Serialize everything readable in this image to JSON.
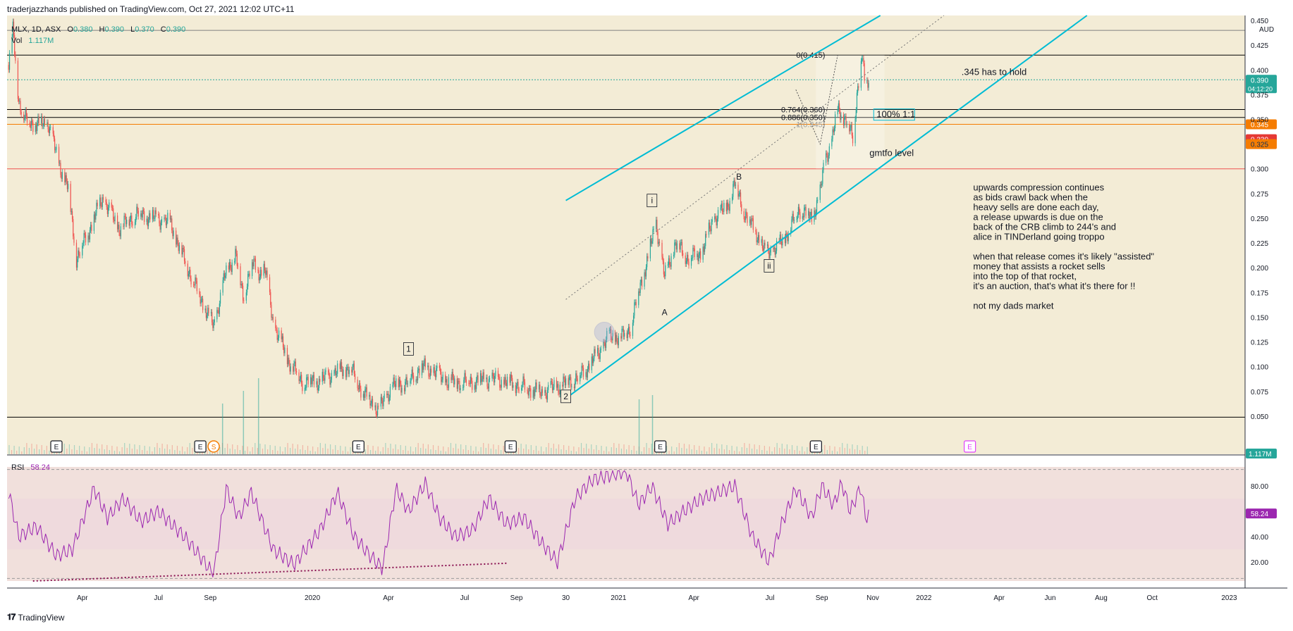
{
  "header": {
    "published": "traderjazzhands published on TradingView.com, Oct 27, 2021 12:02 UTC+11"
  },
  "footer": {
    "brand": "TradingView",
    "logo": "tv-logo-icon"
  },
  "colors": {
    "up": "#26a69a",
    "down": "#ef5350",
    "channel": "#00bcd4",
    "rsi": "#9c27b0",
    "price_panel_bg": "#f3ecd6",
    "rsi_panel_bg": "#f1e0dc",
    "orange": "#f57c00",
    "red": "#e53935"
  },
  "chart_data": {
    "type": "candlestick",
    "symbol": "MLX",
    "interval": "1D",
    "exchange": "ASX",
    "currency": "AUD",
    "legend": {
      "symbol": "MLX, 1D, ASX",
      "o_label": "O",
      "o": "0.380",
      "h_label": "H",
      "h": "0.390",
      "l_label": "L",
      "l": "0.370",
      "c_label": "C",
      "c": "0.390",
      "vol_label": "Vol",
      "vol": "1.117M"
    },
    "ylim": [
      0.035,
      0.455
    ],
    "y_ticks": [
      "0.450",
      "0.425",
      "0.400",
      "0.375",
      "0.350",
      "0.325",
      "0.300",
      "0.275",
      "0.250",
      "0.225",
      "0.200",
      "0.175",
      "0.150",
      "0.125",
      "0.100",
      "0.075",
      "0.050"
    ],
    "x_range": [
      "2019-01-01",
      "2023-01-20"
    ],
    "x_ticks": [
      {
        "date": "2019-04-01",
        "label": "Apr"
      },
      {
        "date": "2019-07-01",
        "label": "Jul"
      },
      {
        "date": "2019-09-01",
        "label": "Sep"
      },
      {
        "date": "2020-01-01",
        "label": "2020"
      },
      {
        "date": "2020-04-01",
        "label": "Apr"
      },
      {
        "date": "2020-07-01",
        "label": "Jul"
      },
      {
        "date": "2020-09-01",
        "label": "Sep"
      },
      {
        "date": "2020-10-30",
        "label": "30"
      },
      {
        "date": "2021-01-01",
        "label": "2021"
      },
      {
        "date": "2021-04-01",
        "label": "Apr"
      },
      {
        "date": "2021-07-01",
        "label": "Jul"
      },
      {
        "date": "2021-09-01",
        "label": "Sep"
      },
      {
        "date": "2021-11-01",
        "label": "Nov"
      },
      {
        "date": "2022-01-01",
        "label": "2022"
      },
      {
        "date": "2022-04-01",
        "label": "Apr"
      },
      {
        "date": "2022-06-01",
        "label": "Jun"
      },
      {
        "date": "2022-08-01",
        "label": "Aug"
      },
      {
        "date": "2022-10-01",
        "label": "Oct"
      },
      {
        "date": "2023-01-01",
        "label": "2023"
      }
    ],
    "price_path": [
      [
        "2019-01-03",
        0.405
      ],
      [
        "2019-01-08",
        0.44
      ],
      [
        "2019-01-15",
        0.37
      ],
      [
        "2019-01-22",
        0.35
      ],
      [
        "2019-02-05",
        0.345
      ],
      [
        "2019-02-20",
        0.345
      ],
      [
        "2019-03-02",
        0.31
      ],
      [
        "2019-03-15",
        0.28
      ],
      [
        "2019-03-25",
        0.21
      ],
      [
        "2019-04-05",
        0.23
      ],
      [
        "2019-04-25",
        0.27
      ],
      [
        "2019-05-15",
        0.24
      ],
      [
        "2019-06-05",
        0.255
      ],
      [
        "2019-06-25",
        0.25
      ],
      [
        "2019-07-15",
        0.245
      ],
      [
        "2019-08-05",
        0.2
      ],
      [
        "2019-08-25",
        0.16
      ],
      [
        "2019-09-05",
        0.14
      ],
      [
        "2019-09-18",
        0.19
      ],
      [
        "2019-10-01",
        0.215
      ],
      [
        "2019-10-10",
        0.17
      ],
      [
        "2019-10-20",
        0.205
      ],
      [
        "2019-10-30",
        0.195
      ],
      [
        "2019-11-05",
        0.2
      ],
      [
        "2019-11-15",
        0.145
      ],
      [
        "2019-12-01",
        0.11
      ],
      [
        "2019-12-20",
        0.085
      ],
      [
        "2020-01-10",
        0.085
      ],
      [
        "2020-01-31",
        0.095
      ],
      [
        "2020-02-15",
        0.1
      ],
      [
        "2020-03-01",
        0.075
      ],
      [
        "2020-03-20",
        0.055
      ],
      [
        "2020-04-05",
        0.08
      ],
      [
        "2020-04-25",
        0.085
      ],
      [
        "2020-05-10",
        0.1
      ],
      [
        "2020-05-25",
        0.095
      ],
      [
        "2020-06-10",
        0.085
      ],
      [
        "2020-07-01",
        0.085
      ],
      [
        "2020-08-01",
        0.087
      ],
      [
        "2020-09-01",
        0.083
      ],
      [
        "2020-10-01",
        0.073
      ],
      [
        "2020-10-25",
        0.082
      ],
      [
        "2020-11-15",
        0.09
      ],
      [
        "2020-12-05",
        0.11
      ],
      [
        "2020-12-20",
        0.13
      ],
      [
        "2021-01-05",
        0.13
      ],
      [
        "2021-01-15",
        0.14
      ],
      [
        "2021-01-25",
        0.175
      ],
      [
        "2021-02-05",
        0.21
      ],
      [
        "2021-02-15",
        0.245
      ],
      [
        "2021-02-25",
        0.19
      ],
      [
        "2021-03-10",
        0.225
      ],
      [
        "2021-03-25",
        0.21
      ],
      [
        "2021-04-10",
        0.215
      ],
      [
        "2021-04-25",
        0.25
      ],
      [
        "2021-05-10",
        0.26
      ],
      [
        "2021-05-20",
        0.285
      ],
      [
        "2021-06-01",
        0.255
      ],
      [
        "2021-06-15",
        0.235
      ],
      [
        "2021-06-25",
        0.215
      ],
      [
        "2021-07-10",
        0.22
      ],
      [
        "2021-07-25",
        0.24
      ],
      [
        "2021-08-05",
        0.26
      ],
      [
        "2021-08-20",
        0.25
      ],
      [
        "2021-08-30",
        0.275
      ],
      [
        "2021-09-05",
        0.31
      ],
      [
        "2021-09-12",
        0.325
      ],
      [
        "2021-09-20",
        0.36
      ],
      [
        "2021-09-30",
        0.35
      ],
      [
        "2021-10-08",
        0.33
      ],
      [
        "2021-10-14",
        0.385
      ],
      [
        "2021-10-19",
        0.415
      ],
      [
        "2021-10-23",
        0.38
      ],
      [
        "2021-10-27",
        0.39
      ]
    ],
    "volume_path": [
      [
        "2019-01-01",
        0.2
      ],
      [
        "2023-01-01",
        0.2
      ]
    ],
    "volume_spikes": [
      [
        "2019-09-15",
        0.6
      ],
      [
        "2019-10-10",
        0.75
      ],
      [
        "2019-10-28",
        0.9
      ],
      [
        "2021-01-25",
        0.65
      ],
      [
        "2021-02-10",
        0.7
      ]
    ],
    "rsi": {
      "label": "RSI",
      "value": "58.24",
      "ylim": [
        5,
        95
      ],
      "y_ticks": [
        "80.00",
        "40.00",
        "20.00"
      ],
      "band": [
        30,
        70
      ],
      "path": [
        [
          "2019-01-03",
          75
        ],
        [
          "2019-01-15",
          40
        ],
        [
          "2019-02-05",
          48
        ],
        [
          "2019-03-01",
          25
        ],
        [
          "2019-03-20",
          30
        ],
        [
          "2019-04-15",
          78
        ],
        [
          "2019-05-01",
          55
        ],
        [
          "2019-05-20",
          70
        ],
        [
          "2019-06-10",
          52
        ],
        [
          "2019-07-01",
          60
        ],
        [
          "2019-08-01",
          40
        ],
        [
          "2019-08-25",
          20
        ],
        [
          "2019-09-05",
          10
        ],
        [
          "2019-09-20",
          78
        ],
        [
          "2019-10-05",
          55
        ],
        [
          "2019-10-20",
          75
        ],
        [
          "2019-11-15",
          30
        ],
        [
          "2019-12-10",
          18
        ],
        [
          "2020-01-10",
          45
        ],
        [
          "2020-01-31",
          75
        ],
        [
          "2020-02-20",
          40
        ],
        [
          "2020-03-10",
          25
        ],
        [
          "2020-03-25",
          15
        ],
        [
          "2020-04-10",
          78
        ],
        [
          "2020-04-25",
          60
        ],
        [
          "2020-05-15",
          82
        ],
        [
          "2020-06-01",
          55
        ],
        [
          "2020-06-20",
          40
        ],
        [
          "2020-07-10",
          45
        ],
        [
          "2020-07-30",
          70
        ],
        [
          "2020-08-20",
          50
        ],
        [
          "2020-09-10",
          55
        ],
        [
          "2020-10-01",
          35
        ],
        [
          "2020-10-20",
          20
        ],
        [
          "2020-11-10",
          70
        ],
        [
          "2020-12-01",
          85
        ],
        [
          "2020-12-20",
          88
        ],
        [
          "2021-01-10",
          92
        ],
        [
          "2021-01-25",
          65
        ],
        [
          "2021-02-10",
          80
        ],
        [
          "2021-03-01",
          50
        ],
        [
          "2021-03-20",
          60
        ],
        [
          "2021-04-10",
          70
        ],
        [
          "2021-05-01",
          75
        ],
        [
          "2021-05-20",
          80
        ],
        [
          "2021-06-10",
          40
        ],
        [
          "2021-06-30",
          20
        ],
        [
          "2021-07-15",
          50
        ],
        [
          "2021-08-01",
          78
        ],
        [
          "2021-08-20",
          55
        ],
        [
          "2021-09-01",
          80
        ],
        [
          "2021-09-15",
          65
        ],
        [
          "2021-09-25",
          82
        ],
        [
          "2021-10-05",
          60
        ],
        [
          "2021-10-18",
          80
        ],
        [
          "2021-10-23",
          55
        ],
        [
          "2021-10-27",
          58
        ]
      ],
      "trendline": [
        [
          "2019-02-01",
          5
        ],
        [
          "2020-08-20",
          19
        ]
      ]
    },
    "horizontal_lines": [
      {
        "y": 0.44,
        "color": "#808080"
      },
      {
        "y": 0.415,
        "color": "#000000"
      },
      {
        "y": 0.36,
        "color": "#000000"
      },
      {
        "y": 0.352,
        "color": "#000000"
      },
      {
        "y": 0.345,
        "color": "#f57c00"
      },
      {
        "y": 0.3,
        "color": "#ef5350"
      },
      {
        "y": 0.049,
        "color": "#000000"
      }
    ],
    "right_labels": [
      {
        "y": 0.39,
        "text": "0.390",
        "sub": "04:12:20",
        "bg": "#26a69a"
      },
      {
        "y": 0.345,
        "text": "0.345",
        "bg": "#f57c00"
      },
      {
        "y": 0.33,
        "text": "0.330",
        "bg": "#e53935"
      },
      {
        "y": 0.325,
        "text": "0.325",
        "bg": "#f57c00"
      }
    ],
    "channel_upper": [
      [
        "2020-10-30",
        0.268
      ],
      [
        "2021-11-10",
        0.455
      ]
    ],
    "channel_lower": [
      [
        "2020-10-30",
        0.068
      ],
      [
        "2022-07-15",
        0.455
      ]
    ],
    "channel_mid": [
      [
        "2020-10-30",
        0.168
      ],
      [
        "2022-01-25",
        0.455
      ]
    ],
    "fib_box": {
      "x1": "2021-08-25",
      "x2": "2021-11-15",
      "y1": 0.3,
      "y2": 0.415
    },
    "fib_labels": [
      {
        "y": 0.415,
        "text": "0(0.415)"
      },
      {
        "y": 0.36,
        "text": "0.764(0.360)"
      },
      {
        "y": 0.352,
        "text": "0.886(0.350)"
      },
      {
        "y": 0.345,
        "text": "1(0.345)"
      }
    ],
    "zigzag": [
      [
        "2021-08-01",
        0.38
      ],
      [
        "2021-08-30",
        0.325
      ],
      [
        "2021-09-20",
        0.415
      ]
    ],
    "wave_labels": [
      {
        "date": "2020-04-25",
        "y": 0.118,
        "text": "1",
        "boxed": true
      },
      {
        "date": "2020-10-30",
        "y": 0.07,
        "text": "2",
        "boxed": true
      },
      {
        "date": "2021-02-10",
        "y": 0.268,
        "text": "i",
        "boxed": true
      },
      {
        "date": "2021-02-25",
        "y": 0.155,
        "text": "A",
        "boxed": false
      },
      {
        "date": "2021-05-25",
        "y": 0.292,
        "text": "B",
        "boxed": false
      },
      {
        "date": "2021-06-30",
        "y": 0.202,
        "text": "ii",
        "boxed": true
      }
    ],
    "annotations": [
      {
        "id": "hold",
        "date": "2022-02-15",
        "y": 0.395,
        "lines": [
          ".345 has to hold"
        ]
      },
      {
        "id": "gmtfo",
        "date": "2021-10-28",
        "y": 0.313,
        "lines": [
          "gmtfo level"
        ]
      },
      {
        "id": "target",
        "date": "2021-10-28",
        "y": 0.352,
        "lines": [
          "100% 1:1"
        ]
      },
      {
        "id": "note",
        "date": "2022-03-01",
        "y": 0.278,
        "lines": [
          "upwards compression continues",
          "as bids crawl back when the",
          "heavy sells are done each day,",
          "a release upwards is due on the",
          "back of the CRB climb to 244's and",
          "alice in TINDerland going troppo",
          "",
          "when that release comes it's likely \"assisted\"",
          "money that assists a rocket sells",
          " into the top of that rocket,",
          "it's an auction, that's what it's there for !!",
          "",
          "not my dads market"
        ]
      }
    ],
    "events": [
      {
        "date": "2019-03-01",
        "label": "E"
      },
      {
        "date": "2019-08-20",
        "label": "E"
      },
      {
        "date": "2019-09-05",
        "label": "S"
      },
      {
        "date": "2020-02-25",
        "label": "E"
      },
      {
        "date": "2020-08-25",
        "label": "E"
      },
      {
        "date": "2021-02-20",
        "label": "E"
      },
      {
        "date": "2021-08-25",
        "label": "E"
      },
      {
        "date": "2022-02-25",
        "label": "E"
      }
    ],
    "circle_marker": {
      "date": "2020-12-15",
      "y": 0.135
    }
  }
}
